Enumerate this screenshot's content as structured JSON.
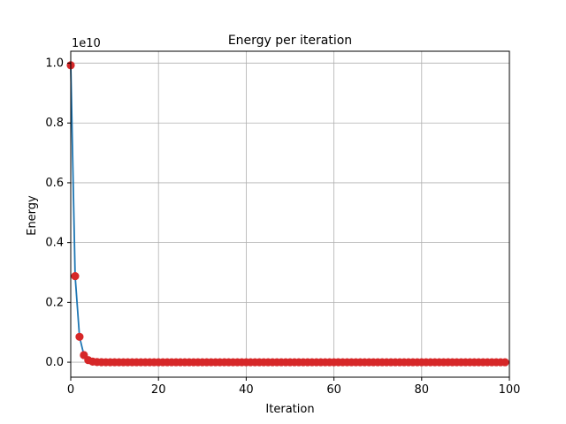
{
  "chart_data": {
    "type": "line",
    "title": "Energy per iteration",
    "xlabel": "Iteration",
    "ylabel": "Energy",
    "y_offset_text": "1e10",
    "xlim": [
      0,
      100
    ],
    "ylim": [
      -0.05,
      1.04
    ],
    "x_ticks": [
      0,
      20,
      40,
      60,
      80,
      100
    ],
    "y_ticks": [
      0.0,
      0.2,
      0.4,
      0.6,
      0.8,
      1.0
    ],
    "x_tick_labels": [
      "0",
      "20",
      "40",
      "60",
      "80",
      "100"
    ],
    "y_tick_labels": [
      "0.0",
      "0.2",
      "0.4",
      "0.6",
      "0.8",
      "1.0"
    ],
    "grid": true,
    "series": [
      {
        "x": [
          0,
          1,
          2,
          3,
          4,
          5,
          6,
          7,
          8,
          9,
          10,
          11,
          12,
          13,
          14,
          15,
          16,
          17,
          18,
          19,
          20,
          21,
          22,
          23,
          24,
          25,
          26,
          27,
          28,
          29,
          30,
          31,
          32,
          33,
          34,
          35,
          36,
          37,
          38,
          39,
          40,
          41,
          42,
          43,
          44,
          45,
          46,
          47,
          48,
          49,
          50,
          51,
          52,
          53,
          54,
          55,
          56,
          57,
          58,
          59,
          60,
          61,
          62,
          63,
          64,
          65,
          66,
          67,
          68,
          69,
          70,
          71,
          72,
          73,
          74,
          75,
          76,
          77,
          78,
          79,
          80,
          81,
          82,
          83,
          84,
          85,
          86,
          87,
          88,
          89,
          90,
          91,
          92,
          93,
          94,
          95,
          96,
          97,
          98,
          99
        ],
        "values": [
          0.993,
          0.288,
          0.085,
          0.024,
          0.007,
          0.002,
          0.0006,
          0.0002,
          5e-05,
          1e-05,
          0.0,
          0.0,
          0.0,
          0.0,
          0.0,
          0.0,
          0.0,
          0.0,
          0.0,
          0.0,
          0.0,
          0.0,
          0.0,
          0.0,
          0.0,
          0.0,
          0.0,
          0.0,
          0.0,
          0.0,
          0.0,
          0.0,
          0.0,
          0.0,
          0.0,
          0.0,
          0.0,
          0.0,
          0.0,
          0.0,
          0.0,
          0.0,
          0.0,
          0.0,
          0.0,
          0.0,
          0.0,
          0.0,
          0.0,
          0.0,
          0.0,
          0.0,
          0.0,
          0.0,
          0.0,
          0.0,
          0.0,
          0.0,
          0.0,
          0.0,
          0.0,
          0.0,
          0.0,
          0.0,
          0.0,
          0.0,
          0.0,
          0.0,
          0.0,
          0.0,
          0.0,
          0.0,
          0.0,
          0.0,
          0.0,
          0.0,
          0.0,
          0.0,
          0.0,
          0.0,
          0.0,
          0.0,
          0.0,
          0.0,
          0.0,
          0.0,
          0.0,
          0.0,
          0.0,
          0.0,
          0.0,
          0.0,
          0.0,
          0.0,
          0.0,
          0.0,
          0.0,
          0.0,
          0.0,
          0.0
        ],
        "line_color": "#1f77b4",
        "marker_color": "#d62728"
      }
    ]
  }
}
